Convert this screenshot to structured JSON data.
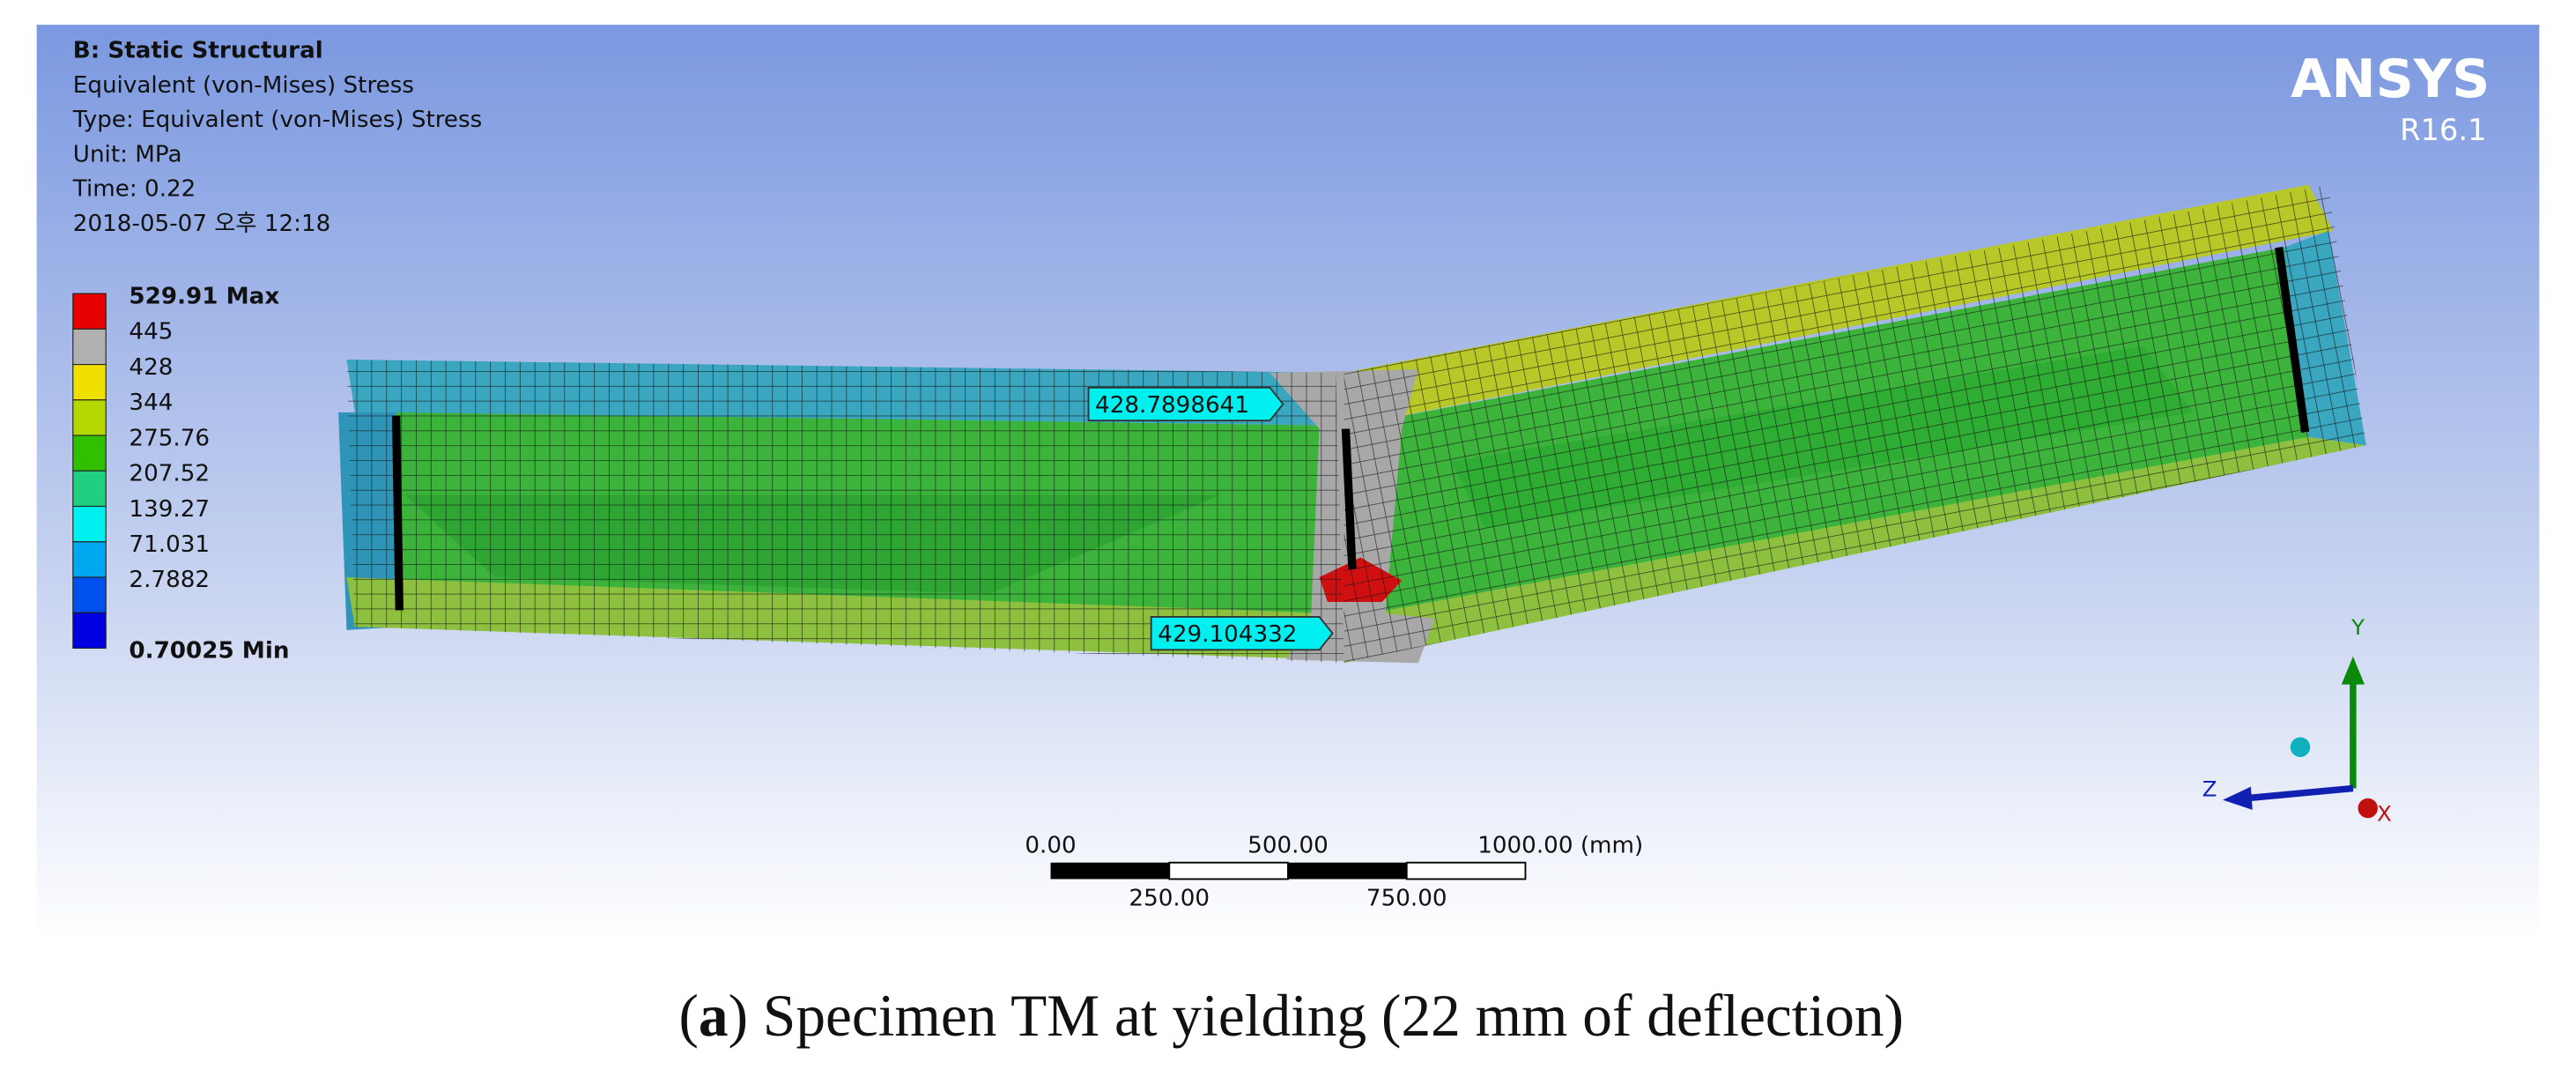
{
  "header": {
    "title": "B: Static Structural",
    "lines": [
      "Equivalent (von-Mises) Stress",
      "Type: Equivalent (von-Mises) Stress",
      "Unit: MPa",
      "Time: 0.22",
      "2018-05-07 오후 12:18"
    ]
  },
  "legend": [
    {
      "label": "529.91 Max",
      "color": "#e60000"
    },
    {
      "label": "445",
      "color": "#b0b0b0"
    },
    {
      "label": "428",
      "color": "#f0e000"
    },
    {
      "label": "344",
      "color": "#b4d800"
    },
    {
      "label": "275.76",
      "color": "#30c000"
    },
    {
      "label": "207.52",
      "color": "#20d080"
    },
    {
      "label": "139.27",
      "color": "#00f0f0"
    },
    {
      "label": "71.031",
      "color": "#00a8f0"
    },
    {
      "label": "2.7882",
      "color": "#0050f0"
    },
    {
      "label": "0.70025 Min",
      "color": "#0000e0"
    }
  ],
  "brand": {
    "name": "ANSYS",
    "version": "R16.1"
  },
  "probes": [
    "428.7898641",
    "429.104332"
  ],
  "scale_bar": {
    "top": [
      "0.00",
      "500.00",
      "1000.00 (mm)"
    ],
    "bottom": [
      "250.00",
      "750.00"
    ]
  },
  "triad": {
    "y": "Y",
    "z": "Z",
    "x": "X"
  },
  "caption": {
    "open": "(",
    "label": "a",
    "text": ") Specimen TM at yielding (22 mm of deflection)"
  }
}
